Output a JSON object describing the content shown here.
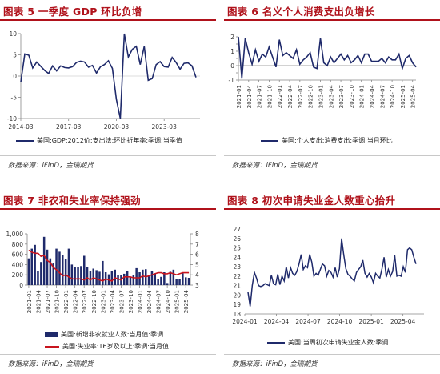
{
  "colors": {
    "title": "#b0121b",
    "navy": "#1f2a6b",
    "red": "#c8141e",
    "axis": "#888888"
  },
  "panels": [
    {
      "title": "图表 5 一季度 GDP 环比负增",
      "source": "数据来源：iFinD，金瑞期货",
      "legend": [
        "美国:GDP:2012价:支出法:环比折年率:季调:当季值"
      ]
    },
    {
      "title": "图表 6 名义个人消费支出负增长",
      "source": "数据来源：iFinD，金瑞期货",
      "legend": [
        "美国:个人支出:消费支出:季调:当月环比"
      ]
    },
    {
      "title": "图表 7 非农和失业率保持强劲",
      "source": "数据来源：iFinD，金瑞期货",
      "legend": [
        "美国:新增非农就业人数:当月值:季调",
        "美国:失业率:16岁及以上:季调:当月值"
      ]
    },
    {
      "title": "图表 8 初次申请失业金人数重心抬升",
      "source": "数据来源：iFinD，金瑞期货",
      "legend": [
        "美国:当周初次申请失业金人数:季调"
      ]
    }
  ],
  "chart_data": [
    {
      "type": "line",
      "title": "图表 5 一季度 GDP 环比负增",
      "x_ticks": [
        "2014-03",
        "2017-03",
        "2020-03",
        "2023-03"
      ],
      "ylim": [
        -10,
        10
      ],
      "y_ticks": [
        -10,
        -5,
        0,
        5,
        10
      ],
      "series": [
        {
          "name": "美国:GDP:2012价:支出法:环比折年率:季调:当季值",
          "x": [
            "2014-03",
            "2014-06",
            "2014-09",
            "2014-12",
            "2015-03",
            "2015-06",
            "2015-09",
            "2015-12",
            "2016-03",
            "2016-06",
            "2016-09",
            "2016-12",
            "2017-03",
            "2017-06",
            "2017-09",
            "2017-12",
            "2018-03",
            "2018-06",
            "2018-09",
            "2018-12",
            "2019-03",
            "2019-06",
            "2019-09",
            "2019-12",
            "2020-03",
            "2020-06",
            "2020-09",
            "2020-12",
            "2021-03",
            "2021-06",
            "2021-09",
            "2021-12",
            "2022-03",
            "2022-06",
            "2022-09",
            "2022-12",
            "2023-03",
            "2023-06",
            "2023-09",
            "2023-12",
            "2024-03",
            "2024-06",
            "2024-09",
            "2024-12",
            "2025-03"
          ],
          "values": [
            -1.4,
            5.2,
            4.9,
            1.9,
            3.3,
            2.3,
            1.3,
            0.6,
            2.4,
            1.2,
            2.4,
            2.0,
            1.9,
            2.2,
            3.2,
            3.5,
            3.3,
            2.1,
            2.5,
            0.7,
            2.2,
            2.7,
            3.6,
            1.8,
            -5.5,
            -10,
            10,
            4.5,
            6.3,
            7.0,
            2.7,
            7.0,
            -1.0,
            -0.6,
            2.7,
            3.4,
            2.2,
            2.1,
            4.4,
            3.2,
            1.6,
            3.0,
            3.1,
            2.4,
            -0.3
          ]
        }
      ]
    },
    {
      "type": "line",
      "title": "图表 6 名义个人消费支出负增长",
      "x_ticks": [
        "2021-01",
        "2021-04",
        "2021-07",
        "2021-10",
        "2022-01",
        "2022-04",
        "2022-07",
        "2022-10",
        "2023-01",
        "2023-04",
        "2023-07",
        "2023-10",
        "2024-01",
        "2024-04",
        "2024-07",
        "2024-10",
        "2025-01",
        "2025-04"
      ],
      "ylim": [
        -1,
        2
      ],
      "y_ticks": [
        -1,
        -0.5,
        0,
        0.5,
        1,
        1.5,
        2
      ],
      "series": [
        {
          "name": "美国:个人支出:消费支出:季调:当月环比",
          "x": [
            "2021-01",
            "2021-02",
            "2021-03",
            "2021-04",
            "2021-05",
            "2021-06",
            "2021-07",
            "2021-08",
            "2021-09",
            "2021-10",
            "2021-11",
            "2021-12",
            "2022-01",
            "2022-02",
            "2022-03",
            "2022-04",
            "2022-05",
            "2022-06",
            "2022-07",
            "2022-08",
            "2022-09",
            "2022-10",
            "2022-11",
            "2022-12",
            "2023-01",
            "2023-02",
            "2023-03",
            "2023-04",
            "2023-05",
            "2023-06",
            "2023-07",
            "2023-08",
            "2023-09",
            "2023-10",
            "2023-11",
            "2023-12",
            "2024-01",
            "2024-02",
            "2024-03",
            "2024-04",
            "2024-05",
            "2024-06",
            "2024-07",
            "2024-08",
            "2024-09",
            "2024-10",
            "2024-11",
            "2024-12",
            "2025-01",
            "2025-02",
            "2025-03",
            "2025-04",
            "2025-05"
          ],
          "values": [
            2.0,
            -0.9,
            1.9,
            0.9,
            0.1,
            1.1,
            0.3,
            0.8,
            0.6,
            1.3,
            0.6,
            -0.1,
            1.8,
            0.7,
            0.9,
            0.7,
            0.5,
            1.1,
            0.1,
            0.4,
            0.6,
            0.9,
            -0.1,
            -0.2,
            1.9,
            0.2,
            0.0,
            0.6,
            0.2,
            0.5,
            0.8,
            0.4,
            0.7,
            0.2,
            0.4,
            0.7,
            0.2,
            0.8,
            0.8,
            0.3,
            0.3,
            0.3,
            0.5,
            0.2,
            0.6,
            0.4,
            0.4,
            0.8,
            -0.2,
            0.5,
            0.7,
            0.2,
            -0.1
          ]
        }
      ]
    },
    {
      "type": "bar",
      "title": "图表 7 非农和失业率保持强劲",
      "x_ticks": [
        "2021-01",
        "2021-04",
        "2021-07",
        "2021-10",
        "2022-01",
        "2022-04",
        "2022-07",
        "2022-10",
        "2023-01",
        "2023-04",
        "2023-07",
        "2023-10",
        "2024-01",
        "2024-04",
        "2024-07",
        "2024-10",
        "2025-01",
        "2025-04"
      ],
      "ylim": [
        0,
        1000
      ],
      "y_ticks": [
        0,
        200,
        400,
        600,
        800,
        1000
      ],
      "y_tick_labels": [
        "0",
        "200",
        "400",
        "600",
        "800",
        "1,000"
      ],
      "y2lim": [
        3,
        8
      ],
      "y2_ticks": [
        3,
        4,
        5,
        6,
        7,
        8
      ],
      "series": [
        {
          "name": "美国:新增非农就业人数:当月值:季调",
          "type": "bar",
          "axis": "left",
          "values": [
            520,
            710,
            785,
            270,
            450,
            940,
            690,
            520,
            430,
            710,
            650,
            580,
            500,
            710,
            400,
            360,
            360,
            370,
            570,
            350,
            280,
            320,
            290,
            260,
            470,
            250,
            210,
            280,
            300,
            200,
            190,
            220,
            280,
            150,
            190,
            330,
            250,
            300,
            310,
            170,
            270,
            220,
            120,
            160,
            250,
            40,
            260,
            300,
            110,
            110,
            230,
            150,
            140
          ]
        },
        {
          "name": "美国:失业率:16岁及以上:季调:当月值",
          "type": "line",
          "axis": "right",
          "values": [
            6.4,
            6.2,
            6.1,
            6.1,
            5.8,
            5.9,
            5.4,
            5.2,
            4.7,
            4.5,
            4.2,
            3.9,
            4.0,
            3.8,
            3.6,
            3.6,
            3.6,
            3.6,
            3.5,
            3.7,
            3.5,
            3.7,
            3.6,
            3.5,
            3.4,
            3.6,
            3.5,
            3.4,
            3.7,
            3.6,
            3.5,
            3.8,
            3.8,
            3.8,
            3.7,
            3.7,
            3.7,
            3.9,
            3.8,
            3.9,
            4.0,
            4.1,
            4.2,
            4.2,
            4.1,
            4.1,
            4.2,
            4.1,
            4.0,
            4.1,
            4.2,
            4.2,
            4.2
          ]
        }
      ]
    },
    {
      "type": "line",
      "title": "图表 8 初次申请失业金人数重心抬升",
      "x_ticks": [
        "2024-01",
        "2024-04",
        "2024-07",
        "2024-10",
        "2025-01",
        "2025-04"
      ],
      "ylim": [
        18,
        27
      ],
      "y_ticks": [
        18,
        19,
        20,
        21,
        22,
        23,
        24,
        25,
        26,
        27
      ],
      "series": [
        {
          "name": "美国:当周初次申请失业金人数:季调",
          "x_start": "2024-01",
          "x_end": "2025-06",
          "values": [
            20.3,
            18.8,
            21.0,
            22.4,
            21.8,
            21.0,
            20.9,
            21.0,
            21.2,
            21.1,
            21.0,
            22.1,
            21.2,
            21.1,
            22.2,
            21.1,
            22.0,
            21.5,
            23.0,
            21.8,
            22.9,
            22.3,
            22.1,
            22.5,
            23.3,
            24.3,
            22.7,
            23.1,
            22.9,
            24.3,
            23.5,
            22.0,
            22.3,
            22.1,
            22.7,
            23.3,
            23.1,
            22.0,
            22.6,
            22.4,
            21.9,
            22.9,
            21.9,
            22.8,
            26.0,
            24.3,
            22.8,
            22.2,
            22.0,
            21.7,
            21.5,
            22.4,
            22.7,
            23.0,
            23.7,
            22.3,
            21.9,
            22.3,
            21.9,
            21.3,
            22.3,
            22.0,
            21.8,
            22.8,
            24.0,
            21.9,
            22.7,
            22.0,
            22.5,
            24.2,
            22.0,
            22.1,
            22.0,
            23.0,
            22.4,
            24.8,
            25.0,
            24.8,
            24.0,
            23.3
          ]
        }
      ]
    }
  ]
}
